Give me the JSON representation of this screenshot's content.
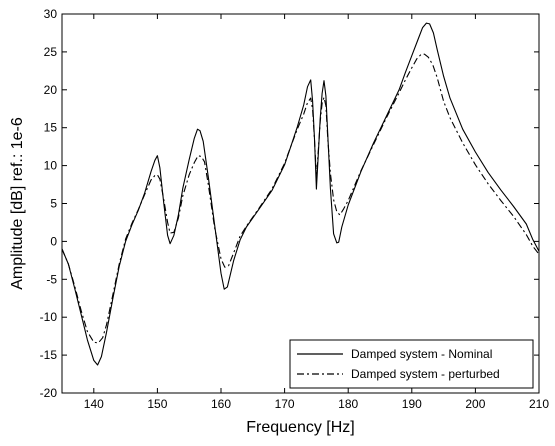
{
  "chart_data": {
    "type": "line",
    "xlabel": "Frequency [Hz]",
    "ylabel": "Amplitude [dB] ref.: 1e-6",
    "xlim": [
      135,
      210
    ],
    "ylim": [
      -20,
      30
    ],
    "xticks": [
      140,
      150,
      160,
      170,
      180,
      190,
      200,
      210
    ],
    "yticks": [
      -20,
      -15,
      -10,
      -5,
      0,
      5,
      10,
      15,
      20,
      25,
      30
    ],
    "grid": false,
    "legend_position": "lower-right",
    "series": [
      {
        "name": "Damped system - Nominal",
        "line_style": "solid",
        "color": "#000000",
        "x": [
          135,
          136,
          137,
          138,
          139,
          140,
          140.6,
          141.2,
          142,
          143,
          144,
          145,
          146,
          147,
          148,
          149,
          149.6,
          150,
          150.4,
          151,
          151.6,
          152,
          152.6,
          153.3,
          154,
          155,
          155.8,
          156.3,
          156.7,
          157.2,
          158,
          159,
          160,
          160.5,
          161,
          162,
          163,
          164,
          166,
          168,
          170,
          171,
          172,
          173,
          173.6,
          174.1,
          174.4,
          174.7,
          175,
          175.3,
          175.6,
          175.9,
          176.2,
          176.5,
          176.8,
          177.2,
          177.7,
          178.2,
          178.5,
          179,
          180,
          182,
          184,
          186,
          188,
          189,
          190,
          191,
          191.7,
          192.3,
          192.8,
          193.4,
          194,
          195,
          196,
          198,
          200,
          202,
          204,
          206,
          208,
          209,
          210
        ],
        "y": [
          -1,
          -3,
          -6.2,
          -9.6,
          -13,
          -15.7,
          -16.3,
          -15.2,
          -12,
          -7.5,
          -3.3,
          0,
          2.2,
          4.1,
          6.4,
          9.2,
          10.7,
          11.3,
          9.7,
          5,
          0.8,
          -0.3,
          0.8,
          3.5,
          7,
          10.8,
          13.6,
          14.8,
          14.6,
          13.2,
          8.5,
          2.2,
          -4.2,
          -6.3,
          -6,
          -2.5,
          0.2,
          1.9,
          4.3,
          6.7,
          10.1,
          12.6,
          15.1,
          18,
          20.4,
          21.3,
          18.5,
          13.5,
          6.9,
          11.5,
          16.2,
          19.5,
          21.2,
          19.2,
          14,
          7,
          1,
          -0.2,
          -0.1,
          1.9,
          4.8,
          9.2,
          13,
          16.5,
          20,
          22.3,
          24.5,
          26.7,
          28.2,
          28.8,
          28.7,
          27.5,
          25.3,
          21.8,
          18.9,
          14.8,
          11.8,
          9.1,
          6.8,
          4.6,
          2.3,
          0.3,
          -1.3
        ]
      },
      {
        "name": "Damped system - perturbed",
        "line_style": "dash-dot",
        "color": "#000000",
        "x": [
          135,
          136,
          137,
          138,
          139,
          140,
          140.7,
          141.4,
          142,
          143,
          144,
          145,
          146,
          147,
          148,
          149,
          149.6,
          150,
          150.4,
          151,
          151.6,
          152,
          152.6,
          153.3,
          154,
          155,
          155.8,
          156.4,
          156.9,
          157.4,
          158,
          159,
          160,
          160.6,
          161.2,
          162,
          163,
          164,
          166,
          168,
          170,
          171,
          172,
          173,
          173.6,
          174.1,
          174.4,
          174.7,
          175,
          175.3,
          175.6,
          175.9,
          176.2,
          176.5,
          176.8,
          177.2,
          177.7,
          178.2,
          178.7,
          179.3,
          180,
          182,
          184,
          186,
          188,
          189,
          190,
          190.8,
          191.5,
          192,
          192.6,
          193.3,
          194,
          195,
          196,
          198,
          200,
          202,
          204,
          206,
          208,
          209,
          210
        ],
        "y": [
          -1,
          -3,
          -5.9,
          -9.1,
          -11.9,
          -13.3,
          -13.4,
          -12.7,
          -11,
          -7,
          -3,
          0.3,
          2.4,
          4.2,
          6.2,
          8.1,
          8.7,
          8.8,
          8.2,
          5.5,
          2.5,
          1.1,
          1.2,
          3.1,
          6,
          8.8,
          10.4,
          11.3,
          11.2,
          10.5,
          7.5,
          1.8,
          -2.3,
          -3.4,
          -3.2,
          -1.5,
          0.7,
          2,
          4.4,
          6.9,
          10.3,
          12.6,
          14.8,
          16.8,
          18.3,
          18.9,
          17.4,
          13.4,
          8.5,
          12,
          15.8,
          18.2,
          19,
          17.9,
          13.5,
          9,
          5.5,
          3.9,
          3.5,
          4.3,
          5.4,
          9.3,
          12.8,
          16.3,
          19.6,
          21.3,
          22.9,
          24.1,
          24.7,
          24.7,
          24.3,
          23.3,
          21.6,
          18.5,
          16.3,
          13,
          10.1,
          7.6,
          5.4,
          3.3,
          0.9,
          -0.6,
          -1.7
        ]
      }
    ]
  }
}
